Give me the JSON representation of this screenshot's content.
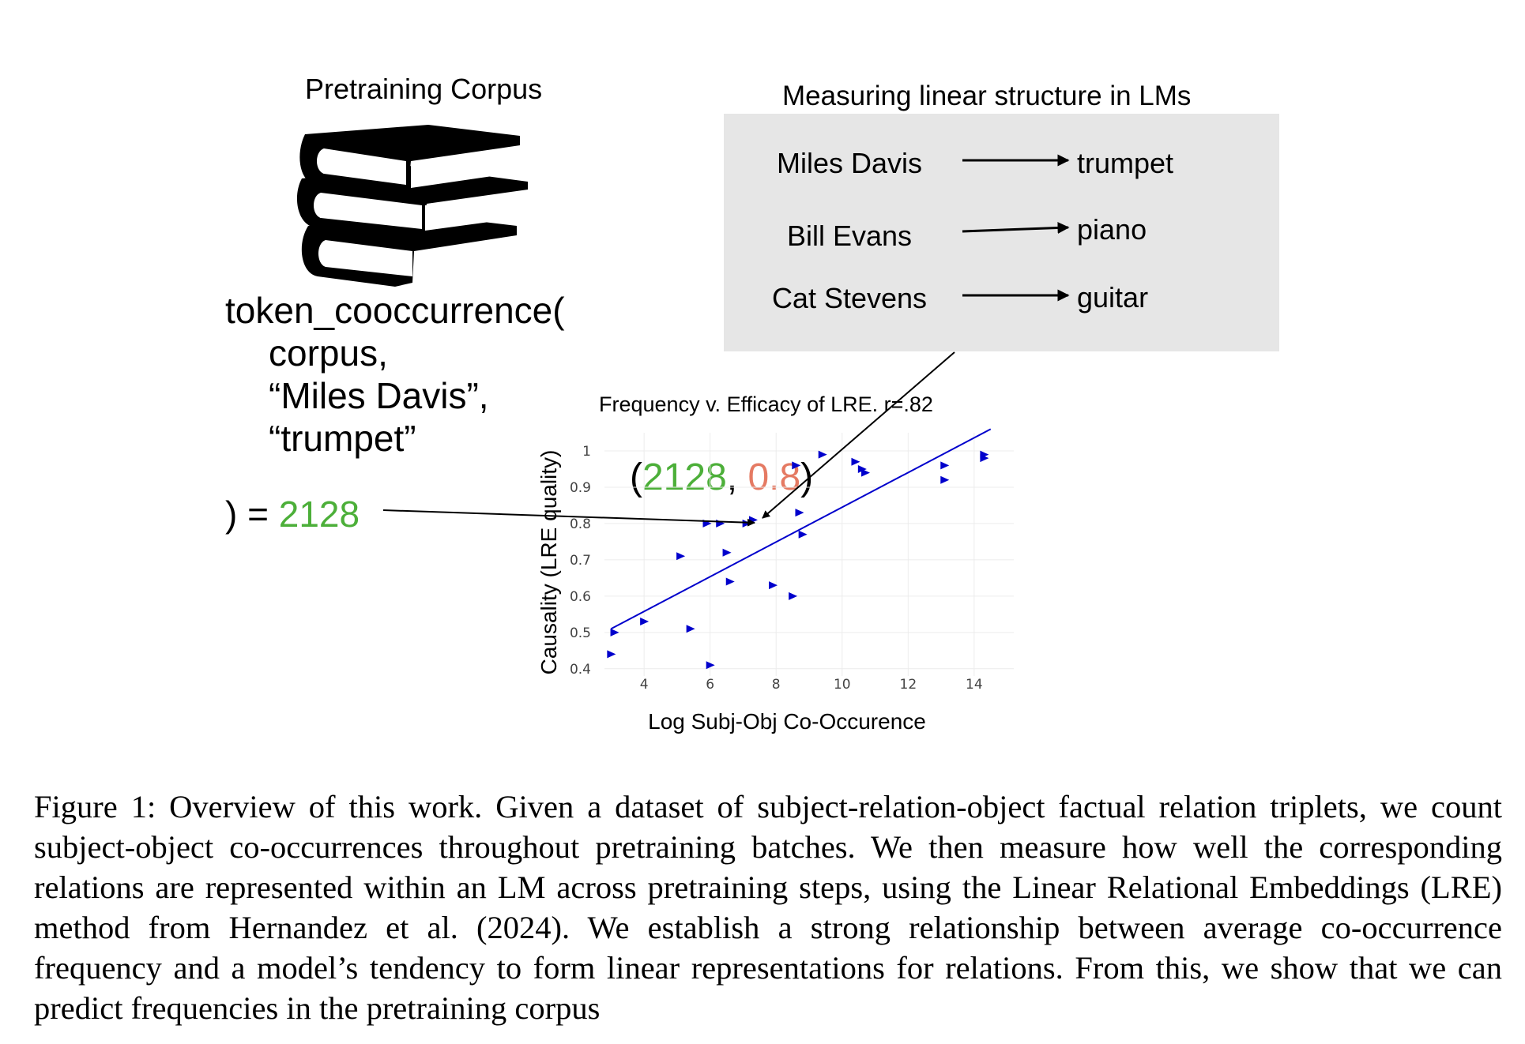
{
  "corpus": {
    "title": "Pretraining Corpus",
    "icon": "books-stack-icon"
  },
  "code": {
    "call": "token_cooccurrence(",
    "args": [
      "corpus,",
      "“Miles Davis”,",
      "“trumpet”"
    ],
    "result_prefix": ") = ",
    "result_value": "2128"
  },
  "lm_box": {
    "title": "Measuring linear structure in LMs",
    "pairs": [
      {
        "subject": "Miles Davis",
        "object": "trumpet"
      },
      {
        "subject": "Bill Evans",
        "object": "piano"
      },
      {
        "subject": "Cat Stevens",
        "object": "guitar"
      }
    ]
  },
  "annotation": {
    "open": "(",
    "x": "2128",
    "sep": ", ",
    "y": "0.8",
    "close": ")"
  },
  "colors": {
    "green": "#4caf39",
    "salmon": "#e57a63",
    "series": "#0000cc",
    "box": "#e6e6e6"
  },
  "chart_data": {
    "type": "scatter",
    "title": "Frequency v. Efficacy of LRE. r=.82",
    "xlabel": "Log Subj-Obj Co-Occurence",
    "ylabel": "Causality (LRE quality)",
    "xlim": [
      2.8,
      15.2
    ],
    "ylim": [
      0.38,
      1.05
    ],
    "xticks": [
      4,
      6,
      8,
      10,
      12,
      14
    ],
    "yticks": [
      0.4,
      0.5,
      0.6,
      0.7,
      0.8,
      0.9,
      1
    ],
    "ytick_labels": [
      "0.4",
      "0.5",
      "0.6",
      "0.7",
      "0.8",
      "0.9",
      "1"
    ],
    "grid": true,
    "marker": "triangle-right",
    "points": [
      {
        "x": 3.0,
        "y": 0.44
      },
      {
        "x": 3.1,
        "y": 0.5
      },
      {
        "x": 4.0,
        "y": 0.53
      },
      {
        "x": 5.1,
        "y": 0.71
      },
      {
        "x": 5.4,
        "y": 0.51
      },
      {
        "x": 5.9,
        "y": 0.8
      },
      {
        "x": 6.0,
        "y": 0.41
      },
      {
        "x": 6.3,
        "y": 0.8
      },
      {
        "x": 6.5,
        "y": 0.72
      },
      {
        "x": 6.6,
        "y": 0.64
      },
      {
        "x": 7.1,
        "y": 0.8
      },
      {
        "x": 7.3,
        "y": 0.81
      },
      {
        "x": 7.9,
        "y": 0.63
      },
      {
        "x": 8.5,
        "y": 0.6
      },
      {
        "x": 8.6,
        "y": 0.96
      },
      {
        "x": 8.7,
        "y": 0.83
      },
      {
        "x": 8.8,
        "y": 0.77
      },
      {
        "x": 9.4,
        "y": 0.99
      },
      {
        "x": 10.4,
        "y": 0.97
      },
      {
        "x": 10.6,
        "y": 0.95
      },
      {
        "x": 10.7,
        "y": 0.94
      },
      {
        "x": 13.1,
        "y": 0.96
      },
      {
        "x": 13.1,
        "y": 0.92
      },
      {
        "x": 14.3,
        "y": 0.99
      },
      {
        "x": 14.3,
        "y": 0.98
      }
    ],
    "fit_line": {
      "x": [
        3.0,
        14.5
      ],
      "y": [
        0.51,
        1.06
      ]
    }
  },
  "caption": {
    "text": "Figure 1: Overview of this work. Given a dataset of subject-relation-object factual relation triplets, we count subject-object co-occurrences throughout pretraining batches. We then measure how well the corresponding relations are represented within an LM across pretraining steps, using the Linear Relational Embeddings (LRE) method from Hernandez et al. (2024). We establish a strong relationship between average co-occurrence frequency and a model’s tendency to form linear representations for relations. From this, we show that we can predict frequencies in the pretraining corpus"
  }
}
